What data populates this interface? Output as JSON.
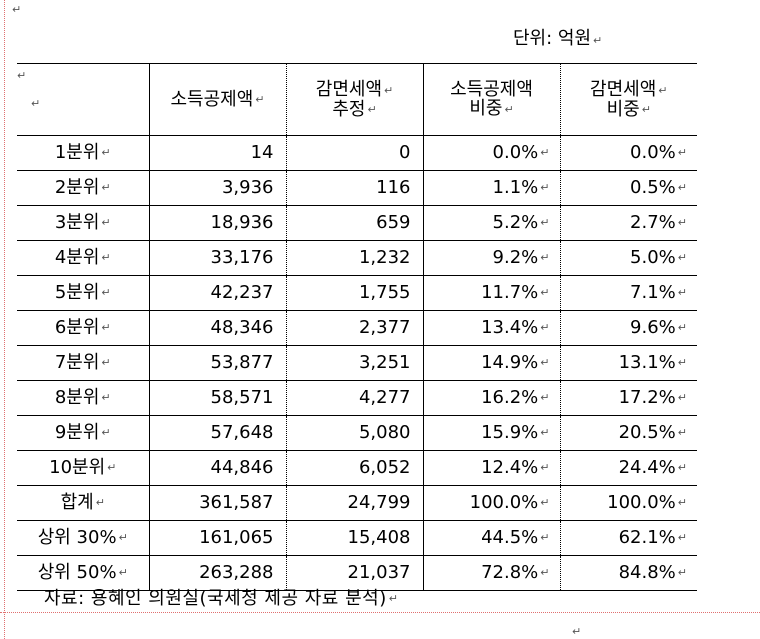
{
  "unit_label": "단위: 억원",
  "header": {
    "col1": [
      "소득공제액"
    ],
    "col2": [
      "감면세액",
      "추정"
    ],
    "col3": [
      "소득공제액",
      "비중"
    ],
    "col4": [
      "감면세액",
      "비중"
    ]
  },
  "rows": [
    {
      "label": "1분위",
      "deduction": "14",
      "reduction": "0",
      "deduction_share": "0.0%",
      "reduction_share": "0.0%"
    },
    {
      "label": "2분위",
      "deduction": "3,936",
      "reduction": "116",
      "deduction_share": "1.1%",
      "reduction_share": "0.5%"
    },
    {
      "label": "3분위",
      "deduction": "18,936",
      "reduction": "659",
      "deduction_share": "5.2%",
      "reduction_share": "2.7%"
    },
    {
      "label": "4분위",
      "deduction": "33,176",
      "reduction": "1,232",
      "deduction_share": "9.2%",
      "reduction_share": "5.0%"
    },
    {
      "label": "5분위",
      "deduction": "42,237",
      "reduction": "1,755",
      "deduction_share": "11.7%",
      "reduction_share": "7.1%"
    },
    {
      "label": "6분위",
      "deduction": "48,346",
      "reduction": "2,377",
      "deduction_share": "13.4%",
      "reduction_share": "9.6%"
    },
    {
      "label": "7분위",
      "deduction": "53,877",
      "reduction": "3,251",
      "deduction_share": "14.9%",
      "reduction_share": "13.1%"
    },
    {
      "label": "8분위",
      "deduction": "58,571",
      "reduction": "4,277",
      "deduction_share": "16.2%",
      "reduction_share": "17.2%"
    },
    {
      "label": "9분위",
      "deduction": "57,648",
      "reduction": "5,080",
      "deduction_share": "15.9%",
      "reduction_share": "20.5%"
    },
    {
      "label": "10분위",
      "deduction": "44,846",
      "reduction": "6,052",
      "deduction_share": "12.4%",
      "reduction_share": "24.4%"
    },
    {
      "label": "합계",
      "deduction": "361,587",
      "reduction": "24,799",
      "deduction_share": "100.0%",
      "reduction_share": "100.0%"
    },
    {
      "label": "상위 30%",
      "deduction": "161,065",
      "reduction": "15,408",
      "deduction_share": "44.5%",
      "reduction_share": "62.1%"
    },
    {
      "label": "상위 50%",
      "deduction": "263,288",
      "reduction": "21,037",
      "deduction_share": "72.8%",
      "reduction_share": "84.8%"
    }
  ],
  "source_note": "자료: 용혜인 의원실(국세청 제공 자료 분석)",
  "paragraph_mark": "↵"
}
